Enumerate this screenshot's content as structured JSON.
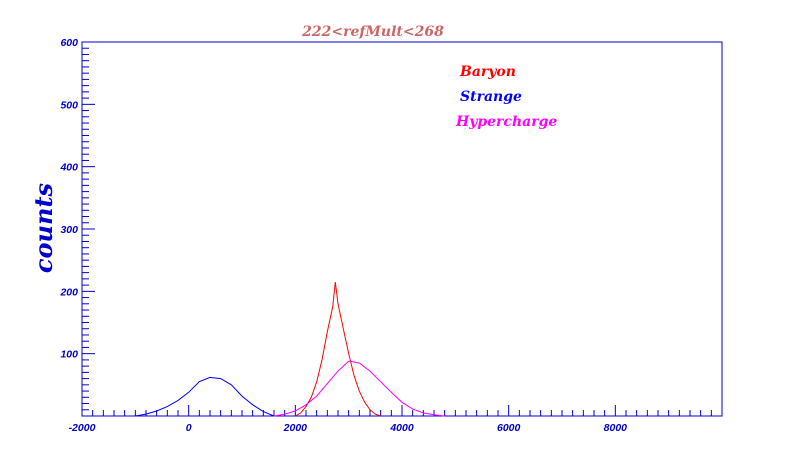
{
  "chart_data": {
    "type": "line",
    "title": "222<refMult<268",
    "xlabel": "",
    "ylabel": "counts",
    "xlim": [
      -2000,
      10000
    ],
    "ylim": [
      0,
      600
    ],
    "x_ticks": [
      -2000,
      0,
      2000,
      4000,
      6000,
      8000
    ],
    "x_tick_labels": [
      "-2000",
      "0",
      "2000",
      "4000",
      "6000",
      "8000"
    ],
    "y_ticks": [
      100,
      200,
      300,
      400,
      500,
      600
    ],
    "y_tick_labels": [
      "100",
      "200",
      "300",
      "400",
      "500",
      "600"
    ],
    "grid": false,
    "legend_position": "top-right",
    "series": [
      {
        "name": "Baryon",
        "color": "#ff0000",
        "x": [
          2000,
          2100,
          2200,
          2300,
          2400,
          2500,
          2600,
          2700,
          2750,
          2800,
          2900,
          3000,
          3100,
          3200,
          3300,
          3400,
          3500,
          3600
        ],
        "y": [
          0,
          5,
          15,
          30,
          55,
          90,
          135,
          175,
          215,
          180,
          140,
          100,
          65,
          40,
          22,
          10,
          3,
          0
        ]
      },
      {
        "name": "Strange",
        "color": "#0000ff",
        "x": [
          -1000,
          -800,
          -600,
          -400,
          -200,
          0,
          200,
          400,
          600,
          800,
          1000,
          1200,
          1400,
          1600
        ],
        "y": [
          0,
          3,
          8,
          15,
          25,
          38,
          55,
          62,
          60,
          50,
          32,
          18,
          7,
          0
        ]
      },
      {
        "name": "Hypercharge",
        "color": "#ff00ff",
        "x": [
          1600,
          1800,
          2000,
          2200,
          2400,
          2600,
          2800,
          3000,
          3200,
          3400,
          3600,
          3800,
          4000,
          4200,
          4400,
          4600,
          4800
        ],
        "y": [
          0,
          3,
          8,
          18,
          32,
          52,
          72,
          88,
          85,
          72,
          55,
          38,
          22,
          11,
          5,
          2,
          0
        ]
      }
    ]
  }
}
